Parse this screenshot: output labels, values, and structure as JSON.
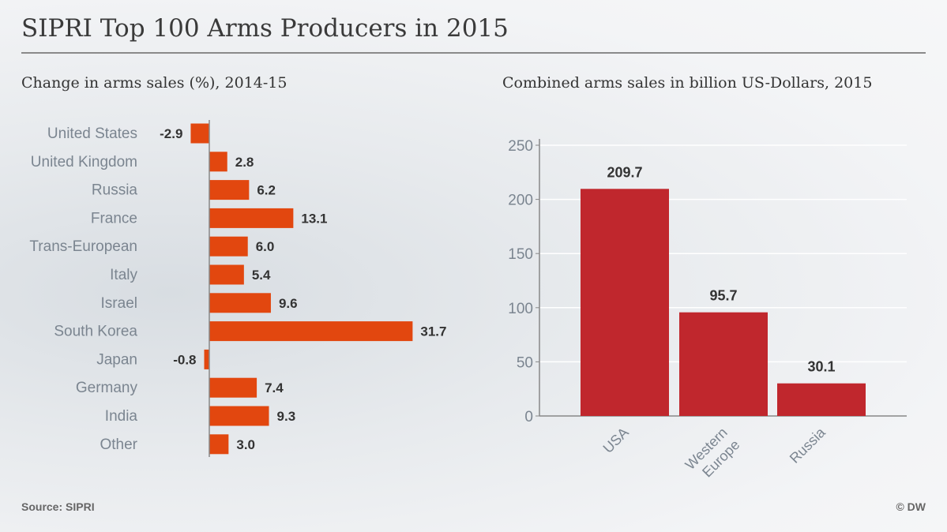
{
  "header": {
    "title": "SIPRI Top 100 Arms Producers in 2015",
    "subtitle_left": "Change in arms sales (%), 2014-15",
    "subtitle_right": "Combined arms sales in billion US-Dollars, 2015"
  },
  "footer": {
    "source": "Source: SIPRI",
    "credit": "© DW"
  },
  "colors": {
    "bar_left": "#e2470f",
    "bar_right": "#c0272d",
    "category_text": "#7b8590",
    "value_text": "#333333",
    "axis": "#888888",
    "grid": "#ffffff"
  },
  "chart_data": [
    {
      "type": "bar",
      "orientation": "horizontal",
      "title": "Change in arms sales (%), 2014-15",
      "categories": [
        "United States",
        "United Kingdom",
        "Russia",
        "France",
        "Trans-European",
        "Italy",
        "Israel",
        "South Korea",
        "Japan",
        "Germany",
        "India",
        "Other"
      ],
      "values": [
        -2.9,
        2.8,
        6.2,
        13.1,
        6.0,
        5.4,
        9.6,
        31.7,
        -0.8,
        7.4,
        9.3,
        3.0
      ],
      "value_labels": [
        "-2.9",
        "2.8",
        "6.2",
        "13.1",
        "6.0",
        "5.4",
        "9.6",
        "31.7",
        "-0.8",
        "7.4",
        "9.3",
        "3.0"
      ],
      "xlim": [
        -3,
        32
      ],
      "grid": false
    },
    {
      "type": "bar",
      "orientation": "vertical",
      "title": "Combined arms sales in billion US-Dollars, 2015",
      "categories": [
        "USA",
        "Western Europe",
        "Russia"
      ],
      "values": [
        209.7,
        95.7,
        30.1
      ],
      "value_labels": [
        "209.7",
        "95.7",
        "30.1"
      ],
      "ylim": [
        0,
        250
      ],
      "yticks": [
        "0",
        "50",
        "100",
        "150",
        "200",
        "250"
      ],
      "grid": true
    }
  ]
}
